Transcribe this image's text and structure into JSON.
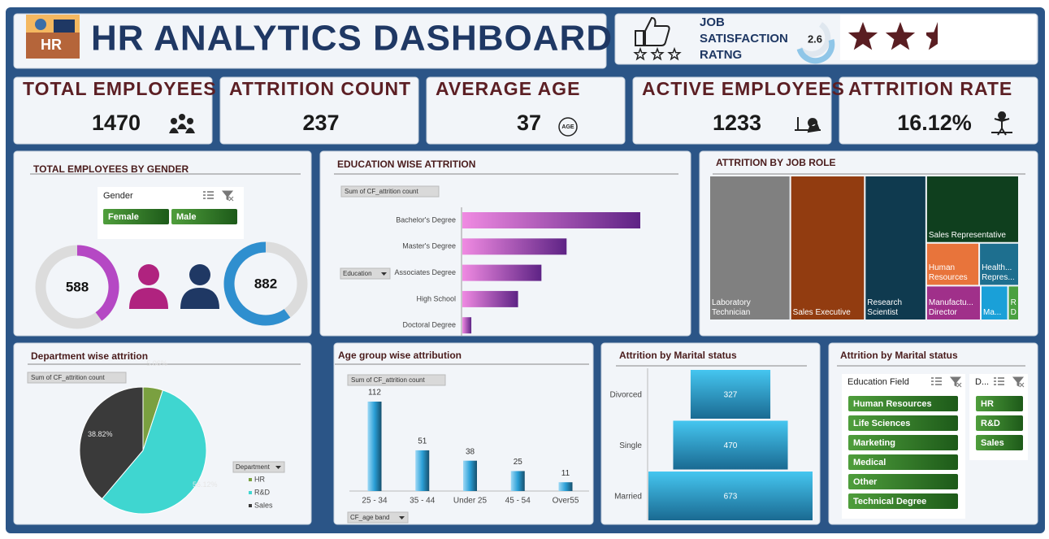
{
  "header": {
    "icon_label": "HR",
    "title": "HR ANALYTICS DASHBOARD",
    "rating_label": "JOB SATISFACTION RATNG",
    "rating": 2.6
  },
  "kpis": [
    {
      "label": "TOTAL EMPLOYEES",
      "value": 1470
    },
    {
      "label": "ATTRITION COUNT",
      "value": 237
    },
    {
      "label": "AVERAGE AGE",
      "value": 37,
      "icon_label": "AGE"
    },
    {
      "label": "ACTIVE EMPLOYEES",
      "value": 1233
    },
    {
      "label": "ATTRITION RATE",
      "value": "16.12%"
    }
  ],
  "chart_data": [
    {
      "type": "donut",
      "title": "TOTAL EMPLOYEES BY GENDER",
      "slicer": {
        "title": "Gender",
        "items": [
          "Female",
          "Male"
        ]
      },
      "values": [
        588,
        882
      ],
      "colors": [
        "#b548c4",
        "#2f8fcf"
      ]
    },
    {
      "type": "hbar",
      "title": "EDUCATION WISE ATTRITION",
      "value_field": "Sum of CF_attrition count",
      "category_field": "Education",
      "categories": [
        "Bachelor's Degree",
        "Master's Degree",
        "Associates Degree",
        "High School",
        "Doctoral Degree"
      ],
      "values": [
        99,
        58,
        44,
        31,
        5
      ],
      "color": "#6a2a8a"
    },
    {
      "type": "treemap",
      "title": "ATTRITION BY JOB ROLE",
      "categories": [
        "Laboratory Technician",
        "Sales Executive",
        "Research Scientist",
        "Sales Representative",
        "Human Resources",
        "Health... Repres...",
        "Manufactu... Director",
        "Ma...",
        "R... D..."
      ],
      "values": [
        62,
        57,
        47,
        33,
        12,
        9,
        10,
        5,
        2
      ],
      "colors": [
        "#808080",
        "#923c10",
        "#0f3a4f",
        "#0f3f1e",
        "#e8743b",
        "#1e6f8f",
        "#a0308a",
        "#1aa0d8",
        "#4aa040"
      ]
    },
    {
      "type": "pie",
      "title": "Department wise attrition",
      "value_field": "Sum of CF_attrition count",
      "legend_title": "Department",
      "categories": [
        "HR",
        "R&D",
        "Sales"
      ],
      "values": [
        12,
        133,
        92
      ],
      "value_labels": [
        "5.06%",
        "56.12%",
        "38.82%"
      ],
      "colors": [
        "#7aa040",
        "#3fd6d0",
        "#3a3a3a"
      ]
    },
    {
      "type": "column",
      "title": "Age group wise attribution",
      "value_field": "Sum of CF_attrition count",
      "category_field": "CF_age band",
      "categories": [
        "25 - 34",
        "35 - 44",
        "Under 25",
        "45 - 54",
        "Over55"
      ],
      "values": [
        112,
        51,
        38,
        25,
        11
      ],
      "color": "#2a9fd6"
    },
    {
      "type": "funnel",
      "title": "Attrition by Marital status",
      "categories": [
        "Divorced",
        "Single",
        "Married"
      ],
      "values": [
        327,
        470,
        673
      ],
      "color": "#1a8cc0"
    }
  ],
  "filter_panel": {
    "title": "Attrition by Marital status",
    "slicers": [
      {
        "title": "Education Field",
        "items": [
          "Human Resources",
          "Life Sciences",
          "Marketing",
          "Medical",
          "Other",
          "Technical Degree"
        ]
      },
      {
        "title": "D...",
        "items": [
          "HR",
          "R&D",
          "Sales"
        ]
      }
    ]
  }
}
